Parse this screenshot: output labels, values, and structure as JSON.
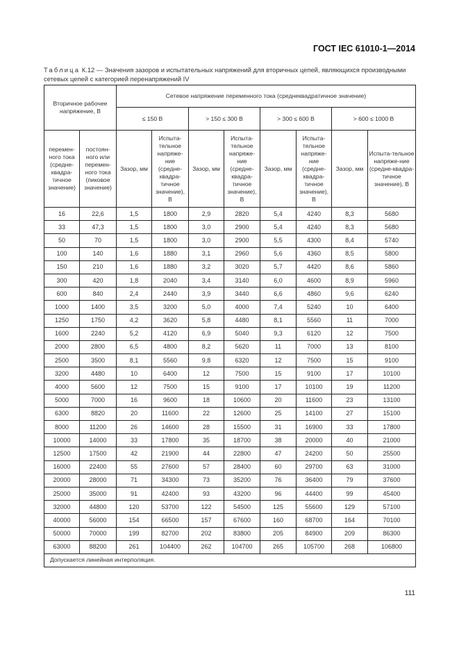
{
  "header": {
    "standard": "ГОСТ IEC 61010-1—2014"
  },
  "caption": {
    "label": "Таблица",
    "text": " К.12 — Значения зазоров и испытательных напряжений для вторичных цепей, являющихся производными сетевых цепей с категорией перенапряжений IV"
  },
  "table": {
    "secondary_header": "Вторичное рабочее напряжение, В",
    "mains_header": "Сетевое напряжение переменного тока (среднеквадратичное значение)",
    "ranges": [
      "≤ 150 В",
      "> 150 ≤ 300 В",
      "> 300 ≤ 600 В",
      "> 600 ≤ 1000 В"
    ],
    "sub_ac": "перемен-ного тока (средне-квадра-тичное значение)",
    "sub_dc": "постоян-ного или перемен-ного тока (пиковое значение)",
    "clearance": "Зазор, мм",
    "test_voltage": "Испыта-тельное напряже-ние (средне-квадра-тичное значение), В",
    "rows": [
      [
        "16",
        "22,6",
        "1,5",
        "1800",
        "2,9",
        "2820",
        "5,4",
        "4240",
        "8,3",
        "5680"
      ],
      [
        "33",
        "47,3",
        "1,5",
        "1800",
        "3,0",
        "2900",
        "5,4",
        "4240",
        "8,3",
        "5680"
      ],
      [
        "50",
        "70",
        "1,5",
        "1800",
        "3,0",
        "2900",
        "5,5",
        "4300",
        "8,4",
        "5740"
      ],
      [
        "100",
        "140",
        "1,6",
        "1880",
        "3,1",
        "2960",
        "5,6",
        "4360",
        "8,5",
        "5800"
      ],
      [
        "150",
        "210",
        "1,6",
        "1880",
        "3,2",
        "3020",
        "5,7",
        "4420",
        "8,6",
        "5860"
      ],
      [
        "300",
        "420",
        "1,8",
        "2040",
        "3,4",
        "3140",
        "6,0",
        "4600",
        "8,9",
        "5960"
      ],
      [
        "600",
        "840",
        "2,4",
        "2440",
        "3,9",
        "3440",
        "6,6",
        "4860",
        "9,6",
        "6240"
      ],
      [
        "1000",
        "1400",
        "3,5",
        "3200",
        "5,0",
        "4000",
        "7,4",
        "5240",
        "10",
        "6400"
      ],
      [
        "1250",
        "1750",
        "4,2",
        "3620",
        "5,8",
        "4480",
        "8,1",
        "5560",
        "11",
        "7000"
      ],
      [
        "1600",
        "2240",
        "5,2",
        "4120",
        "6,9",
        "5040",
        "9,3",
        "6120",
        "12",
        "7500"
      ],
      [
        "2000",
        "2800",
        "6,5",
        "4800",
        "8,2",
        "5620",
        "11",
        "7000",
        "13",
        "8100"
      ],
      [
        "2500",
        "3500",
        "8,1",
        "5560",
        "9,8",
        "6320",
        "12",
        "7500",
        "15",
        "9100"
      ],
      [
        "3200",
        "4480",
        "10",
        "6400",
        "12",
        "7500",
        "15",
        "9100",
        "17",
        "10100"
      ],
      [
        "4000",
        "5600",
        "12",
        "7500",
        "15",
        "9100",
        "17",
        "10100",
        "19",
        "11200"
      ],
      [
        "5000",
        "7000",
        "16",
        "9600",
        "18",
        "10600",
        "20",
        "11600",
        "23",
        "13100"
      ],
      [
        "6300",
        "8820",
        "20",
        "11600",
        "22",
        "12600",
        "25",
        "14100",
        "27",
        "15100"
      ],
      [
        "8000",
        "11200",
        "26",
        "14600",
        "28",
        "15500",
        "31",
        "16900",
        "33",
        "17800"
      ],
      [
        "10000",
        "14000",
        "33",
        "17800",
        "35",
        "18700",
        "38",
        "20000",
        "40",
        "21000"
      ],
      [
        "12500",
        "17500",
        "42",
        "21900",
        "44",
        "22800",
        "47",
        "24200",
        "50",
        "25500"
      ],
      [
        "16000",
        "22400",
        "55",
        "27600",
        "57",
        "28400",
        "60",
        "29700",
        "63",
        "31000"
      ],
      [
        "20000",
        "28000",
        "71",
        "34300",
        "73",
        "35200",
        "76",
        "36400",
        "79",
        "37600"
      ],
      [
        "25000",
        "35000",
        "91",
        "42400",
        "93",
        "43200",
        "96",
        "44400",
        "99",
        "45400"
      ],
      [
        "32000",
        "44800",
        "120",
        "53700",
        "122",
        "54500",
        "125",
        "55600",
        "129",
        "57100"
      ],
      [
        "40000",
        "56000",
        "154",
        "66500",
        "157",
        "67600",
        "160",
        "68700",
        "164",
        "70100"
      ],
      [
        "50000",
        "70000",
        "199",
        "82700",
        "202",
        "83800",
        "205",
        "84900",
        "209",
        "86300"
      ],
      [
        "63000",
        "88200",
        "261",
        "104400",
        "262",
        "104700",
        "265",
        "105700",
        "268",
        "106800"
      ]
    ],
    "note": "Допускается линейная интерполяция."
  },
  "page_number": "111"
}
